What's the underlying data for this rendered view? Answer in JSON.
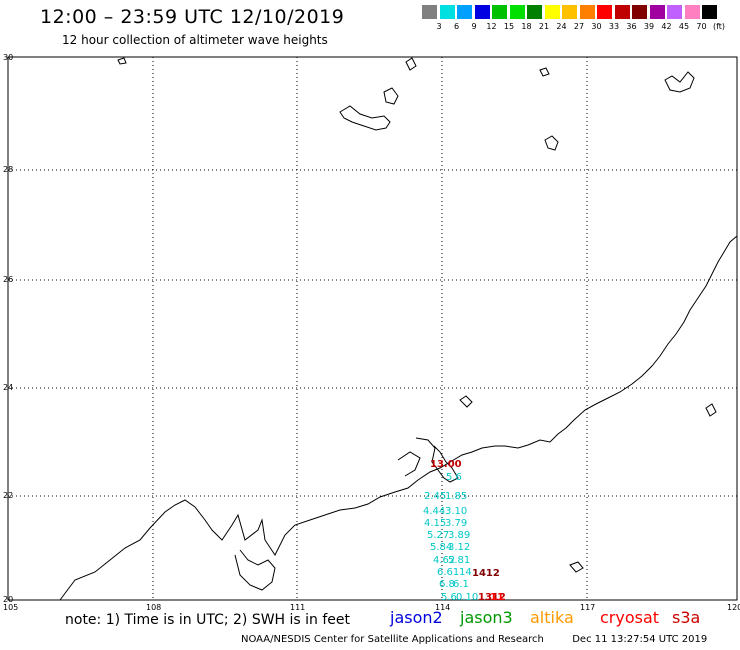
{
  "header": {
    "title": "12:00 – 23:59 UTC 12/10/2019",
    "subtitle": "12 hour collection of altimeter wave heights"
  },
  "legend": {
    "colors": [
      "#808080",
      "#00e0e0",
      "#00a0ff",
      "#0000e0",
      "#00c000",
      "#00e000",
      "#008000",
      "#ffff00",
      "#ffc000",
      "#ff8000",
      "#ff0000",
      "#c00000",
      "#800000",
      "#a000a0",
      "#c060ff",
      "#ff80c0",
      "#000000"
    ],
    "labels": [
      "3",
      "6",
      "9",
      "12",
      "15",
      "18",
      "21",
      "24",
      "27",
      "30",
      "33",
      "36",
      "39",
      "42",
      "45",
      "70"
    ],
    "unit": "(ft)"
  },
  "axes": {
    "lat_labels": [
      "30",
      "28",
      "26",
      "24",
      "22",
      "20"
    ],
    "lon_labels": [
      "105",
      "108",
      "111",
      "114",
      "117",
      "120"
    ]
  },
  "observations": [
    {
      "text": "13.00",
      "color": "#c00000"
    },
    {
      "text": "5.6",
      "color": "#00c8c8"
    },
    {
      "text": "2.45",
      "color": "#00c8c8"
    },
    {
      "text": "1.85",
      "color": "#00c8c8"
    },
    {
      "text": "4.44",
      "color": "#00c8c8"
    },
    {
      "text": "3.10",
      "color": "#00c8c8"
    },
    {
      "text": "4.15",
      "color": "#00c8c8"
    },
    {
      "text": "3.79",
      "color": "#00c8c8"
    },
    {
      "text": "5.27",
      "color": "#00c8c8"
    },
    {
      "text": "3.89",
      "color": "#00c8c8"
    },
    {
      "text": "5.84",
      "color": "#00c8c8"
    },
    {
      "text": "3.12",
      "color": "#00c8c8"
    },
    {
      "text": "4.62",
      "color": "#00c8c8"
    },
    {
      "text": "5.81",
      "color": "#00c8c8"
    },
    {
      "text": "6.61",
      "color": "#00c8c8"
    },
    {
      "text": "14",
      "color": "#00c8c8"
    },
    {
      "text": "1412",
      "color": "#800000"
    },
    {
      "text": "6.8",
      "color": "#00c8c8"
    },
    {
      "text": "6.1",
      "color": "#00c8c8"
    },
    {
      "text": "1312",
      "color": "#c00000"
    },
    {
      "text": "5.6",
      "color": "#00c8c8"
    },
    {
      "text": "0.10",
      "color": "#00c8c8"
    },
    {
      "text": "11",
      "color": "#ff0000"
    }
  ],
  "footer": {
    "note": "note: 1) Time is in UTC; 2) SWH is in feet",
    "satellites": [
      {
        "name": "jason2",
        "color": "#0000dd"
      },
      {
        "name": "jason3",
        "color": "#009900"
      },
      {
        "name": "altika",
        "color": "#ff9900"
      },
      {
        "name": "cryosat",
        "color": "#ff0000"
      },
      {
        "name": "s3a",
        "color": "#cc0000"
      }
    ],
    "credit": "NOAA/NESDIS Center for Satellite Applications and Research",
    "timestamp": "Dec 11 13:27:54 UTC 2019"
  }
}
